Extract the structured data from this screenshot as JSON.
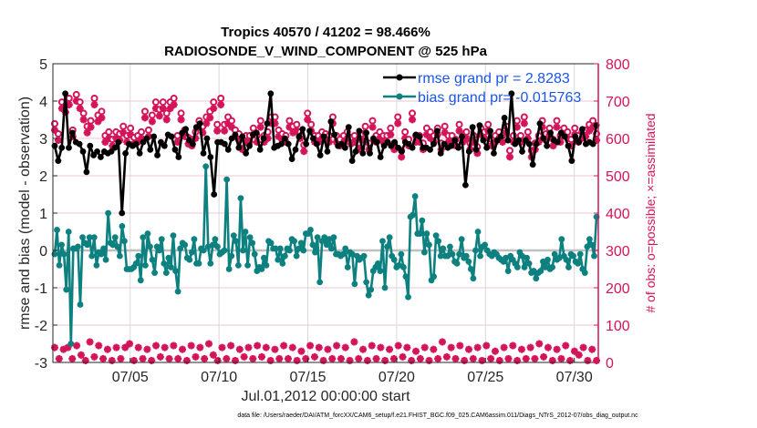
{
  "chart_data": {
    "type": "line",
    "title": "Tropics 40570 / 41202 = 98.466%",
    "subtitle": "RADIOSONDE_V_WIND_COMPONENT @ 525 hPa",
    "xlabel": "Jul.01,2012 00:00:00 start",
    "ylabel": "rmse and bias (model - observation)",
    "y2label": "# of obs: o=possible; ×=assimilated",
    "footnote": "data file: /Users/raeder/DAI/ATM_forcXX/CAM6_setup/f.e21.FHIST_BGC.f09_025.CAM6assim.011/Diags_NTrS_2012-07/obs_diag_output.nc",
    "xlim_days": [
      -0.35,
      30.35
    ],
    "ylim": [
      -3,
      5
    ],
    "y2lim": [
      0,
      800
    ],
    "grid": true,
    "legend_position": "top-right",
    "xticks": [
      {
        "day": 4,
        "label": "07/05"
      },
      {
        "day": 9,
        "label": "07/10"
      },
      {
        "day": 14,
        "label": "07/15"
      },
      {
        "day": 19,
        "label": "07/20"
      },
      {
        "day": 24,
        "label": "07/25"
      },
      {
        "day": 29,
        "label": "07/30"
      }
    ],
    "yticks": [
      "-3",
      "-2",
      "-1",
      "0",
      "1",
      "2",
      "3",
      "4",
      "5"
    ],
    "y2ticks": [
      "0",
      "100",
      "200",
      "300",
      "400",
      "500",
      "600",
      "700",
      "800"
    ],
    "sample_interval_days": 0.25,
    "series": [
      {
        "name": "rmse",
        "legend": "rmse grand pr = 2.8283",
        "color": "#000000",
        "values": [
          2.8,
          2.4,
          2.75,
          4.2,
          2.75,
          3.15,
          2.9,
          2.85,
          2.65,
          2.1,
          2.8,
          2.55,
          2.65,
          2.5,
          2.65,
          2.6,
          2.65,
          2.75,
          2.9,
          1.0,
          2.6,
          2.85,
          2.8,
          2.85,
          2.6,
          2.9,
          3.0,
          2.7,
          3.05,
          2.55,
          2.9,
          2.8,
          3.1,
          3.05,
          2.7,
          2.5,
          3.15,
          3.25,
          2.95,
          2.85,
          3.3,
          3.4,
          2.6,
          3.0,
          2.5,
          1.5,
          2.9,
          2.9,
          2.85,
          2.7,
          3.0,
          3.1,
          2.75,
          3.05,
          2.6,
          2.8,
          3.1,
          3.15,
          2.7,
          3.0,
          3.4,
          4.2,
          2.75,
          2.8,
          2.85,
          3.0,
          2.85,
          2.45,
          2.7,
          3.05,
          3.25,
          2.85,
          3.2,
          3.0,
          2.85,
          2.55,
          3.05,
          2.65,
          3.45,
          3.1,
          2.8,
          2.85,
          2.75,
          3.3,
          2.4,
          2.65,
          3.2,
          2.6,
          3.15,
          2.6,
          3.0,
          2.9,
          2.5,
          2.8,
          2.9,
          2.8,
          2.9,
          2.75,
          2.65,
          2.9,
          2.85,
          2.75,
          3.1,
          3.05,
          2.75,
          2.75,
          2.7,
          2.85,
          3.2,
          2.6,
          2.85,
          2.75,
          2.8,
          2.95,
          2.75,
          3.05,
          1.75,
          2.65,
          3.3,
          2.7,
          3.35,
          2.95,
          2.75,
          3.2,
          2.6,
          2.95,
          3.05,
          3.55,
          2.95,
          4.2,
          2.85,
          2.95,
          2.65,
          2.95,
          2.85,
          2.3,
          2.85,
          3.4,
          3.0,
          2.8,
          3.15,
          2.95,
          2.9,
          3.15,
          3.05,
          2.8,
          2.4,
          3.05,
          2.9,
          3.25,
          2.85,
          2.9,
          2.85,
          3.35
        ]
      },
      {
        "name": "bias",
        "legend": "bias grand pr= -0.015763",
        "color": "#0d8080",
        "values": [
          -0.1,
          0.55,
          -0.4,
          0.15,
          -0.1,
          -1.05,
          0.5,
          -2.5,
          0.05,
          0.05,
          0.1,
          -1.45,
          0.35,
          0.2,
          0.15,
          0.35,
          -0.15,
          0.35,
          -0.4,
          -0.05,
          -0.1,
          0.05,
          -0.25,
          1.0,
          0.2,
          0.15,
          0.35,
          0.1,
          -0.15,
          0.65,
          0.25,
          -0.5,
          -0.5,
          -0.5,
          -0.45,
          -0.35,
          -0.15,
          -0.8,
          0.35,
          -0.4,
          0.45,
          0.1,
          -0.25,
          -0.6,
          0.1,
          0.0,
          0.3,
          -0.35,
          -0.6,
          -0.2,
          -0.45,
          0.4,
          -0.55,
          -1.1,
          0.05,
          0.2,
          0.15,
          -0.2,
          -0.25,
          -0.05,
          0.3,
          -0.35,
          -0.35,
          0.05,
          0.0,
          2.25,
          0.1,
          -0.35,
          0.15,
          0.3,
          0.1,
          -0.1,
          -0.05,
          0.0,
          1.9,
          -0.5,
          -0.15,
          0.4,
          0.25,
          -0.4,
          1.4,
          0.0,
          0.5,
          -0.4,
          0.35,
          0.2,
          -0.1,
          -0.55,
          -0.45,
          -0.5,
          -0.2,
          -0.4,
          0.25,
          0.2,
          0.05,
          0.05,
          -0.25,
          0.05,
          -0.35,
          -0.15,
          0.05,
          0.0,
          0.3,
          0.25,
          -0.15,
          0.05,
          0.2,
          0.0,
          0.45,
          0.45,
          0.55,
          0.15,
          -0.05,
          0.35,
          -0.85,
          0.25,
          0.35,
          0.15,
          0.3,
          0.05,
          0.35,
          -0.1,
          -0.1,
          -0.15,
          -0.1,
          0.05,
          -0.45,
          -0.05,
          -0.1,
          -0.9,
          -0.15,
          -0.25,
          -0.2,
          -0.15,
          -0.85,
          -1.2,
          -1.05,
          -0.55,
          -0.45,
          -0.35,
          -0.55,
          0.25,
          -1.0,
          0.1,
          0.35,
          -0.15,
          -0.25,
          -0.45,
          -0.4,
          -0.1,
          -0.45,
          -0.7,
          -1.25,
          0.9,
          0.95,
          1.45,
          0.45,
          0.45,
          0.8,
          -0.05,
          0.45,
          0.15,
          -0.8,
          -0.7,
          0.4,
          0.25,
          -0.15,
          0.05,
          -0.15,
          -0.15,
          0.1,
          -0.1,
          -0.3,
          -0.35,
          -0.1,
          0.3,
          -0.2,
          -0.15,
          -0.3,
          -0.5,
          -0.75,
          0.0,
          0.5,
          -0.15,
          0.1,
          0.15,
          0.0,
          -0.1,
          -0.15,
          -0.05,
          -0.1,
          -0.2,
          -0.25,
          -0.3,
          -0.2,
          -0.55,
          -0.15,
          -0.25,
          -0.35,
          -0.45,
          -0.05,
          -0.15,
          -0.45,
          -0.2,
          -0.35,
          -0.6,
          -0.55,
          -0.75,
          -0.6,
          -0.55,
          -0.3,
          -0.45,
          -0.25,
          -0.5,
          -0.45,
          -0.1,
          -0.25,
          -0.2,
          0.3,
          -0.15,
          -0.25,
          -0.45,
          -0.1,
          -0.15,
          -0.3,
          -0.35,
          -0.1,
          -0.5,
          -0.6,
          0.1,
          0.3,
          0.15,
          -0.15,
          0.9
        ]
      },
      {
        "name": "obs possible",
        "color": "#d4145a",
        "marker": "o",
        "values": [
          632,
          605,
          690,
          680,
          700,
          615,
          710,
          690,
          660,
          625,
          640,
          700,
          655,
          665,
          600,
          610,
          590,
          610,
          605,
          625,
          600,
          620,
          595,
          600,
          610,
          665,
          615,
          655,
          690,
          670,
          690,
          660,
          690,
          700,
          600,
          660,
          615,
          595,
          590,
          610,
          640,
          625,
          650,
          665,
          690,
          630,
          700,
          630,
          650,
          640,
          615,
          605,
          580,
          600,
          600,
          620,
          600,
          640,
          600,
          610,
          650,
          650,
          615,
          605,
          600,
          640,
          625,
          630,
          610,
          575,
          660,
          630,
          600,
          600,
          610,
          605,
          600,
          650,
          600,
          590,
          600,
          610,
          595,
          600,
          580,
          605,
          625,
          580,
          640,
          600,
          610,
          600,
          600,
          620,
          580,
          650,
          560,
          610,
          590,
          660,
          600,
          600,
          580,
          620,
          610,
          600,
          620,
          580,
          625,
          600,
          600,
          590,
          630,
          600,
          610,
          580,
          600,
          570,
          620,
          610,
          630,
          590,
          600,
          610,
          600,
          625,
          560,
          600,
          640,
          600,
          650,
          610,
          560,
          580,
          600,
          640,
          605,
          620,
          590,
          640,
          600,
          620,
          610,
          590,
          620,
          600,
          610,
          615,
          630,
          640,
          605
        ]
      },
      {
        "name": "obs assimilated",
        "color": "#d4145a",
        "marker": "x",
        "values": [
          40,
          10,
          35,
          40,
          10,
          45,
          20,
          5,
          55,
          15,
          45,
          10,
          35,
          5,
          40,
          10,
          40,
          50,
          5,
          40,
          10,
          35,
          5,
          45,
          15,
          40,
          10,
          45,
          10,
          35,
          5,
          45,
          15,
          40,
          10,
          50,
          20,
          5,
          40,
          10,
          45,
          5,
          35,
          15,
          40,
          10,
          45,
          15,
          40,
          5,
          35,
          10,
          45,
          10,
          40,
          5,
          30,
          10,
          45,
          15,
          40,
          5,
          35,
          10,
          45,
          10,
          40,
          5,
          55,
          10,
          35,
          5,
          45,
          10,
          40,
          5,
          35,
          10,
          45,
          15,
          40,
          5,
          30,
          10,
          40,
          5,
          35,
          10,
          55,
          15,
          40,
          10,
          45,
          5,
          35,
          10,
          40,
          5,
          45,
          10,
          30,
          5,
          40,
          10,
          45,
          5,
          35,
          10,
          40,
          10,
          50,
          15,
          40,
          5,
          35,
          10,
          45,
          5,
          30,
          20,
          40,
          5,
          35,
          5
        ]
      }
    ]
  }
}
